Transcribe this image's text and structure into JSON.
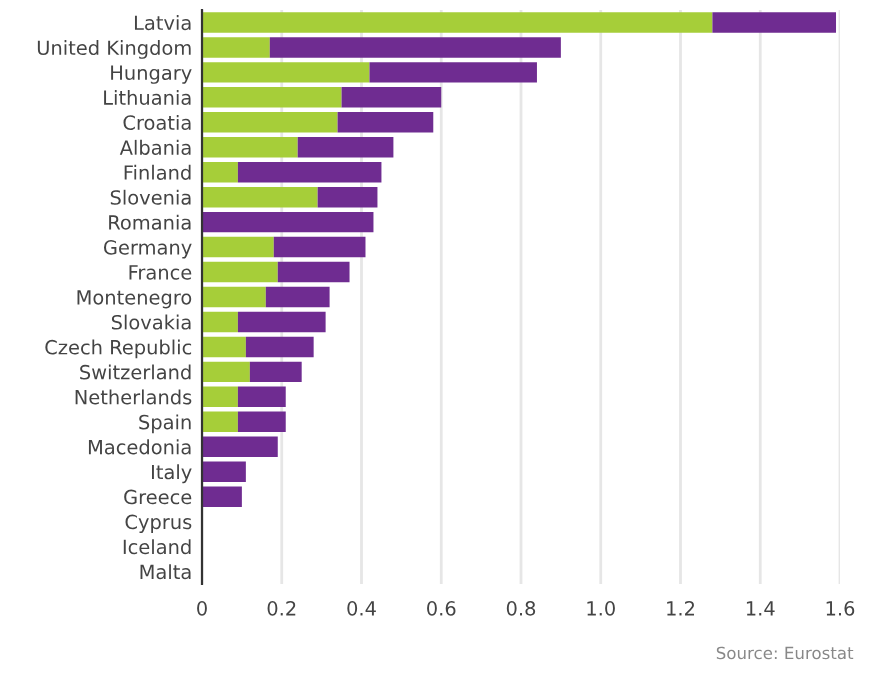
{
  "chart_data": {
    "type": "bar",
    "orientation": "horizontal",
    "stacked": true,
    "categories": [
      "Latvia",
      "United Kingdom",
      "Hungary",
      "Lithuania",
      "Croatia",
      "Albania",
      "Finland",
      "Slovenia",
      "Romania",
      "Germany",
      "France",
      "Montenegro",
      "Slovakia",
      "Czech Republic",
      "Switzerland",
      "Netherlands",
      "Spain",
      "Macedonia",
      "Italy",
      "Greece",
      "Cyprus",
      "Iceland",
      "Malta"
    ],
    "series": [
      {
        "color": "#a6ce39",
        "values": [
          1.28,
          0.17,
          0.42,
          0.35,
          0.34,
          0.24,
          0.09,
          0.29,
          0,
          0.18,
          0.19,
          0.16,
          0.09,
          0.11,
          0.12,
          0.09,
          0.09,
          0,
          0,
          0,
          0,
          0,
          0
        ]
      },
      {
        "color": "#6f2c91",
        "values": [
          0.31,
          0.73,
          0.42,
          0.25,
          0.24,
          0.24,
          0.36,
          0.15,
          0.43,
          0.23,
          0.18,
          0.16,
          0.22,
          0.17,
          0.13,
          0.12,
          0.12,
          0.19,
          0.11,
          0.1,
          0,
          0,
          0
        ]
      }
    ],
    "xlim": [
      0,
      1.6
    ],
    "xticks": [
      0,
      0.2,
      0.4,
      0.6,
      0.8,
      {
        "value": 1,
        "label": "1.0"
      },
      1.2,
      1.4,
      1.6
    ],
    "grid": "x",
    "legend": false,
    "annotations": [
      "Source: Eurostat"
    ]
  }
}
